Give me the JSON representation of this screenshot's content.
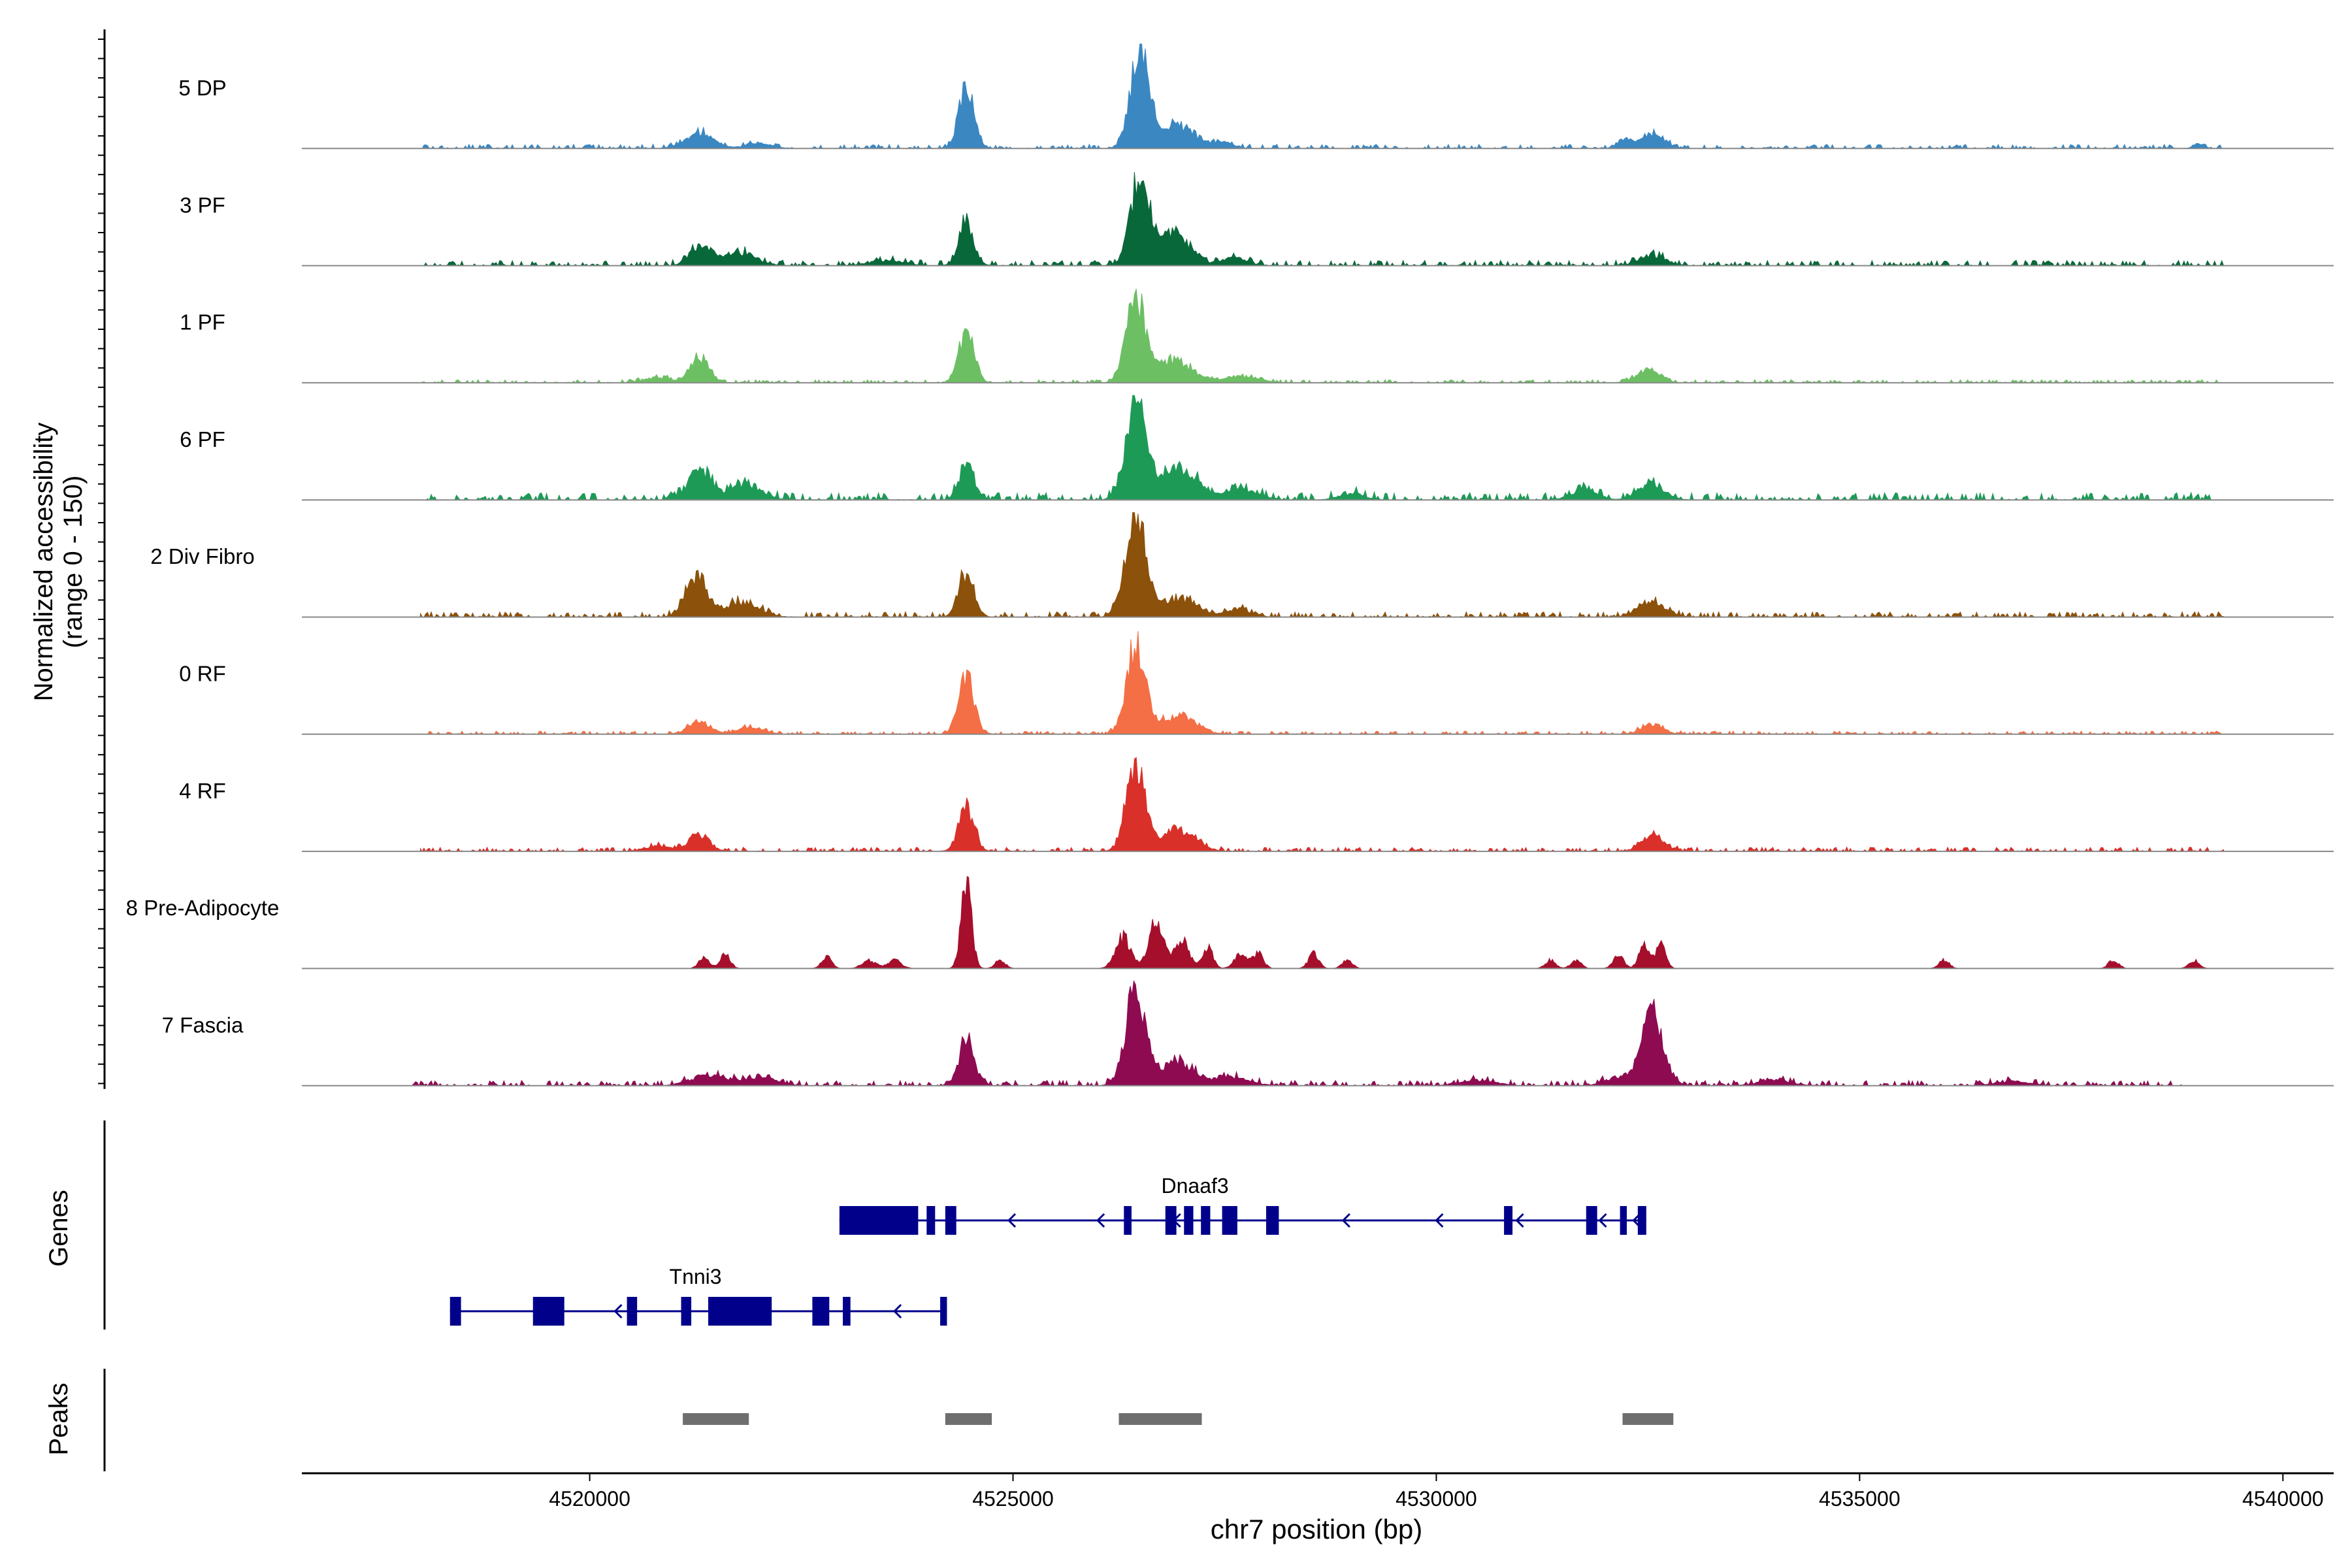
{
  "chart_data": {
    "type": "area",
    "title": "",
    "xlabel": "chr7 position (bp)",
    "ylabel_line1": "Normalized accessibility",
    "ylabel_line2": "(range 0 - 150)",
    "xlim": [
      4516600,
      4540600
    ],
    "ylim": [
      0,
      150
    ],
    "x_ticks": [
      4520000,
      4525000,
      4530000,
      4535000,
      4540000
    ],
    "x_tick_labels": [
      "4520000",
      "4525000",
      "4530000",
      "4535000",
      "4540000"
    ],
    "track_labels": {
      "genes": "Genes",
      "peaks": "Peaks"
    },
    "series": [
      {
        "name": "5 DP",
        "color": "#3a87c2",
        "bg": 4,
        "start": 4518000,
        "end": 4539300,
        "peaks": [
          [
            4521300,
            14,
            170
          ],
          [
            4522000,
            5,
            150
          ],
          [
            4524450,
            58,
            90
          ],
          [
            4526500,
            95,
            110
          ],
          [
            4526950,
            22,
            200
          ],
          [
            4527500,
            5,
            120
          ],
          [
            4532550,
            13,
            130
          ],
          [
            4532250,
            7,
            100
          ],
          [
            4539000,
            5,
            60
          ]
        ]
      },
      {
        "name": "3 PF",
        "color": "#08683a",
        "bg": 5,
        "start": 4518000,
        "end": 4539300,
        "peaks": [
          [
            4521300,
            18,
            120
          ],
          [
            4521750,
            13,
            200
          ],
          [
            4524450,
            40,
            90
          ],
          [
            4526500,
            85,
            110
          ],
          [
            4526900,
            30,
            180
          ],
          [
            4527600,
            8,
            150
          ],
          [
            4532550,
            10,
            150
          ],
          [
            4523500,
            5,
            200
          ]
        ]
      },
      {
        "name": "1 PF",
        "color": "#6dbf64",
        "bg": 3,
        "start": 4518000,
        "end": 4539300,
        "peaks": [
          [
            4521300,
            25,
            110
          ],
          [
            4524450,
            48,
            90
          ],
          [
            4526450,
            80,
            110
          ],
          [
            4526900,
            22,
            200
          ],
          [
            4527700,
            6,
            200
          ],
          [
            4532500,
            12,
            140
          ],
          [
            4520800,
            5,
            150
          ]
        ]
      },
      {
        "name": "6 PF",
        "color": "#1e9a57",
        "bg": 7,
        "start": 4518000,
        "end": 4539300,
        "peaks": [
          [
            4521300,
            28,
            140
          ],
          [
            4521850,
            15,
            180
          ],
          [
            4524450,
            34,
            90
          ],
          [
            4526450,
            90,
            120
          ],
          [
            4526950,
            28,
            220
          ],
          [
            4527700,
            10,
            200
          ],
          [
            4532550,
            15,
            150
          ],
          [
            4531750,
            10,
            150
          ],
          [
            4529000,
            6,
            150
          ]
        ]
      },
      {
        "name": "2 Div Fibro",
        "color": "#8c510a",
        "bg": 5,
        "start": 4518000,
        "end": 4539300,
        "peaks": [
          [
            4521250,
            40,
            120
          ],
          [
            4521800,
            14,
            200
          ],
          [
            4524450,
            44,
            90
          ],
          [
            4526450,
            95,
            120
          ],
          [
            4526950,
            18,
            200
          ],
          [
            4527650,
            8,
            150
          ],
          [
            4532550,
            14,
            160
          ]
        ]
      },
      {
        "name": "0 RF",
        "color": "#f46f45",
        "bg": 3,
        "start": 4518000,
        "end": 4539300,
        "peaks": [
          [
            4521300,
            12,
            130
          ],
          [
            4521900,
            7,
            150
          ],
          [
            4524450,
            55,
            90
          ],
          [
            4526450,
            88,
            110
          ],
          [
            4526950,
            18,
            200
          ],
          [
            4532550,
            9,
            130
          ]
        ]
      },
      {
        "name": "4 RF",
        "color": "#d9302a",
        "bg": 4,
        "start": 4518000,
        "end": 4539300,
        "peaks": [
          [
            4521300,
            15,
            120
          ],
          [
            4524450,
            42,
            90
          ],
          [
            4526450,
            80,
            110
          ],
          [
            4526950,
            20,
            200
          ],
          [
            4532550,
            14,
            130
          ],
          [
            4520800,
            5,
            150
          ]
        ]
      },
      {
        "name": "8 Pre-Adipocyte",
        "color": "#a50f2c",
        "bg": 0,
        "start": 4521200,
        "end": 4539300,
        "peaks": [
          [
            4521350,
            11,
            60
          ],
          [
            4521600,
            13,
            60
          ],
          [
            4522800,
            11,
            60
          ],
          [
            4523300,
            8,
            80
          ],
          [
            4523600,
            8,
            80
          ],
          [
            4524450,
            85,
            60
          ],
          [
            4524850,
            8,
            60
          ],
          [
            4526300,
            30,
            90
          ],
          [
            4526700,
            48,
            90
          ],
          [
            4527000,
            26,
            80
          ],
          [
            4527300,
            20,
            60
          ],
          [
            4527700,
            14,
            80
          ],
          [
            4527900,
            14,
            60
          ],
          [
            4528550,
            14,
            60
          ],
          [
            4528950,
            8,
            60
          ],
          [
            4531350,
            8,
            60
          ],
          [
            4531650,
            8,
            60
          ],
          [
            4532150,
            14,
            60
          ],
          [
            4532450,
            22,
            60
          ],
          [
            4532650,
            22,
            60
          ],
          [
            4536000,
            8,
            60
          ],
          [
            4538000,
            8,
            60
          ],
          [
            4538950,
            8,
            60
          ]
        ]
      },
      {
        "name": "7 Fascia",
        "color": "#8e0b52",
        "bg": 5,
        "start": 4517900,
        "end": 4538800,
        "peaks": [
          [
            4521400,
            10,
            200
          ],
          [
            4522000,
            8,
            200
          ],
          [
            4524450,
            40,
            90
          ],
          [
            4526450,
            88,
            120
          ],
          [
            4526950,
            22,
            200
          ],
          [
            4527600,
            8,
            200
          ],
          [
            4532550,
            68,
            130
          ],
          [
            4532150,
            8,
            150
          ],
          [
            4530500,
            5,
            200
          ],
          [
            4534000,
            5,
            200
          ],
          [
            4536800,
            4,
            200
          ]
        ]
      }
    ],
    "genes": [
      {
        "name": "Dnaaf3",
        "start": 4522950,
        "end": 4532480,
        "strand": "-",
        "exons": [
          [
            4522950,
            4523880
          ],
          [
            4523980,
            4524080
          ],
          [
            4524200,
            4524330
          ],
          [
            4526310,
            4526400
          ],
          [
            4526800,
            4526930
          ],
          [
            4527020,
            4527130
          ],
          [
            4527220,
            4527330
          ],
          [
            4527470,
            4527650
          ],
          [
            4527990,
            4528140
          ],
          [
            4530800,
            4530900
          ],
          [
            4531770,
            4531900
          ],
          [
            4532170,
            4532250
          ],
          [
            4532380,
            4532480
          ]
        ],
        "arrows": [
          4524950,
          4526000,
          4526900,
          4528900,
          4530000,
          4530950,
          4531930,
          4532330
        ]
      },
      {
        "name": "Tnni3",
        "start": 4518350,
        "end": 4524220,
        "strand": "-",
        "exons": [
          [
            4518350,
            4518480
          ],
          [
            4519330,
            4519700
          ],
          [
            4520440,
            4520560
          ],
          [
            4521080,
            4521200
          ],
          [
            4521400,
            4522150
          ],
          [
            4522630,
            4522830
          ],
          [
            4522990,
            4523080
          ],
          [
            4524140,
            4524220
          ]
        ],
        "arrows": [
          4519350,
          4520300,
          4523600
        ]
      }
    ],
    "peaks": [
      [
        4521100,
        4521880
      ],
      [
        4524200,
        4524750
      ],
      [
        4526250,
        4527230
      ],
      [
        4532200,
        4532800
      ]
    ]
  }
}
